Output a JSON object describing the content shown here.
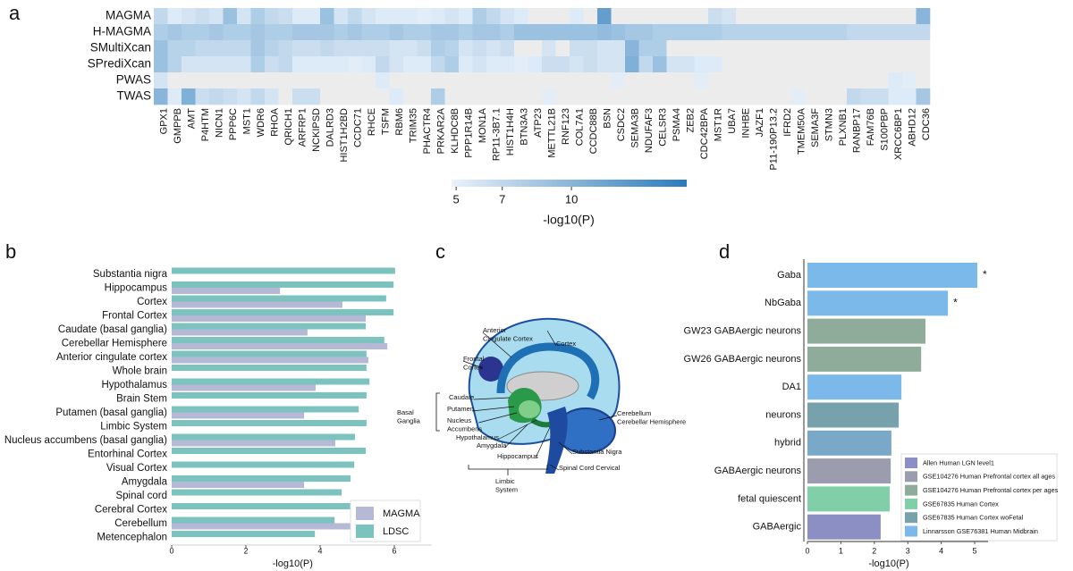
{
  "chart_data": [
    {
      "type": "heatmap",
      "panel": "a",
      "rows": [
        "MAGMA",
        "H-MAGMA",
        "SMultiXcan",
        "SPrediXcan",
        "PWAS",
        "TWAS"
      ],
      "columns": [
        "GPX1",
        "GMPPB",
        "AMT",
        "P4HTM",
        "NICN1",
        "PPP6C",
        "MST1",
        "WDR6",
        "RHOA",
        "QRICH1",
        "ARFRP1",
        "NCKIPSD",
        "DALRD3",
        "HIST1H2BD",
        "CCDC71",
        "RHCE",
        "TSFM",
        "RBM6",
        "TRIM35",
        "PHACTR4",
        "PRKAR2A",
        "KLHDC8B",
        "PPP1R14B",
        "MON1A",
        "RP11-3B7.1",
        "HIST1H4H",
        "BTN3A3",
        "ATP23",
        "METTL21B",
        "RNF123",
        "COL7A1",
        "CCDC88B",
        "BSN",
        "CSDC2",
        "SEMA3B",
        "NDUFAF3",
        "CELSR3",
        "PSMA4",
        "ZEB2",
        "CDC42BPA",
        "MST1R",
        "UBA7",
        "INHBE",
        "JAZF1",
        "P11-190P13.2",
        "IFRD2",
        "TMEM50A",
        "SEMA3F",
        "STMN3",
        "PLXNB1",
        "RANBP17",
        "FAM76B",
        "S100PBP",
        "XRCC6BP1",
        "ABHD12",
        "CDC36"
      ],
      "values": [
        [
          7,
          5.5,
          6,
          6.5,
          6,
          9,
          6,
          8,
          7,
          6.5,
          5.5,
          5.5,
          9,
          6,
          7,
          6,
          5.5,
          5.5,
          5.5,
          5.2,
          5.5,
          6,
          5.5,
          8,
          7,
          6,
          5.5,
          null,
          null,
          null,
          5.5,
          null,
          12,
          null,
          null,
          null,
          null,
          null,
          null,
          null,
          6.5,
          6,
          null,
          null,
          null,
          null,
          null,
          null,
          null,
          null,
          null,
          null,
          null,
          null,
          null,
          10
        ],
        [
          8,
          8.5,
          8,
          8,
          8.5,
          8,
          8,
          8.5,
          8,
          8,
          8.5,
          8.5,
          8.5,
          8,
          8.5,
          8,
          8,
          8.5,
          8,
          8,
          8.5,
          8.5,
          8,
          8.5,
          8.5,
          8,
          9,
          9,
          9,
          9,
          9,
          9,
          9.5,
          9,
          8.5,
          8.5,
          8,
          8,
          8,
          8,
          8,
          7.5,
          7.5,
          7.5,
          7.5,
          7.5,
          7.5,
          7.5,
          7.5,
          7.5,
          7,
          7,
          7,
          7,
          7,
          7
        ],
        [
          9,
          7.5,
          7.5,
          7,
          7,
          7,
          7,
          8.5,
          7.5,
          7,
          6.5,
          6.5,
          7,
          6.5,
          6.5,
          6.5,
          6.5,
          6,
          6,
          6.5,
          8,
          7.5,
          6,
          6.5,
          6,
          6.5,
          null,
          null,
          6,
          null,
          6.5,
          6.5,
          6,
          6,
          10,
          8,
          8,
          null,
          null,
          null,
          null,
          null,
          null,
          null,
          null,
          null,
          null,
          null,
          null,
          null,
          null,
          null,
          null,
          null,
          null,
          null
        ],
        [
          9,
          7.5,
          6,
          6,
          6,
          6,
          6,
          8,
          6.5,
          7,
          5.5,
          5.5,
          5.5,
          5.5,
          5.2,
          5.5,
          7,
          6,
          5.5,
          5.5,
          7,
          8,
          5.5,
          6,
          5.5,
          5.5,
          5.2,
          5.5,
          6.5,
          6.5,
          6,
          6.5,
          6,
          6,
          10.5,
          7,
          9,
          6,
          6,
          5.5,
          5.5,
          null,
          null,
          null,
          null,
          null,
          null,
          null,
          null,
          null,
          null,
          null,
          null,
          null,
          null,
          null
        ],
        [
          6,
          null,
          null,
          null,
          null,
          null,
          null,
          null,
          null,
          null,
          null,
          null,
          null,
          null,
          null,
          null,
          5.5,
          null,
          null,
          null,
          null,
          null,
          null,
          null,
          null,
          null,
          null,
          null,
          null,
          null,
          null,
          null,
          null,
          5.2,
          null,
          null,
          null,
          null,
          null,
          5.2,
          null,
          null,
          null,
          null,
          null,
          null,
          null,
          null,
          null,
          null,
          null,
          null,
          null,
          5.5,
          5.2,
          null
        ],
        [
          10,
          5.5,
          10.5,
          6.5,
          7,
          6.5,
          6,
          7,
          6,
          null,
          6.5,
          6.5,
          null,
          null,
          null,
          null,
          null,
          5.5,
          null,
          null,
          8,
          null,
          null,
          null,
          null,
          null,
          null,
          null,
          5.2,
          null,
          null,
          null,
          null,
          null,
          null,
          null,
          null,
          null,
          null,
          null,
          null,
          null,
          null,
          null,
          null,
          null,
          5.2,
          null,
          null,
          null,
          7,
          6.5,
          6.5,
          5.5,
          5.5,
          8.5
        ]
      ],
      "colorbar": {
        "label": "-log10(P)",
        "lim": [
          4.8,
          15
        ],
        "ticks": [
          5,
          7,
          10
        ]
      },
      "colors": [
        "#eaf2fb",
        "#2b7bba"
      ],
      "missing_color": "#ececec"
    },
    {
      "type": "bar",
      "panel": "b",
      "orientation": "horizontal",
      "categories": [
        "Substantia nigra",
        "Hippocampus",
        "Cortex",
        "Frontal Cortex",
        "Caudate (basal ganglia)",
        "Cerebellar Hemisphere",
        "Anterior cingulate cortex",
        "Whole brain",
        "Hypothalamus",
        "Brain Stem",
        "Putamen (basal ganglia)",
        "Limbic System",
        "Nucleus accumbens (basal ganglia)",
        "Entorhinal Cortex",
        "Visual Cortex",
        "Amygdala",
        "Spinal cord",
        "Cerebral Cortex",
        "Cerebellum",
        "Metencephalon"
      ],
      "series": [
        {
          "name": "MAGMA",
          "color": "#b5b9d5",
          "values": [
            null,
            2.92,
            4.6,
            5.23,
            3.66,
            5.81,
            5.3,
            null,
            3.88,
            null,
            3.57,
            null,
            4.41,
            null,
            null,
            3.57,
            null,
            null,
            5.18,
            null
          ]
        },
        {
          "name": "LDSC",
          "color": "#7cc2be",
          "values": [
            6.02,
            5.98,
            5.78,
            5.98,
            5.23,
            5.73,
            5.25,
            5.25,
            5.33,
            5.25,
            5.04,
            5.25,
            4.94,
            5.23,
            4.92,
            4.82,
            4.58,
            4.94,
            4.39,
            3.86
          ]
        }
      ],
      "xlabel": "-log10(P)",
      "xlim": [
        0,
        7
      ],
      "xticks": [
        0,
        2,
        4,
        6
      ],
      "legend": "lower right"
    },
    {
      "type": "bar",
      "panel": "d",
      "orientation": "horizontal",
      "categories": [
        "Gaba",
        "NbGaba",
        "GW23 GABAergic neurons",
        "GW26 GABAergic neurons",
        "DA1",
        "neurons",
        "hybrid",
        "GABAergic neurons",
        "fetal quiescent",
        "GABAergic"
      ],
      "values": [
        5.08,
        4.2,
        3.53,
        3.4,
        2.81,
        2.73,
        2.51,
        2.49,
        2.46,
        2.19
      ],
      "colors": [
        "#7ab9ea",
        "#7ab9ea",
        "#8fac9b",
        "#8fac9b",
        "#7ab9ea",
        "#78a2ab",
        "#7aa8c8",
        "#9b9cae",
        "#80cfa9",
        "#8c8fc4"
      ],
      "annotations": [
        "*",
        "*",
        null,
        null,
        null,
        null,
        null,
        null,
        null,
        null
      ],
      "xlabel": "-log10(P)",
      "xlim": [
        0,
        5.4
      ],
      "xticks": [
        0,
        1,
        2,
        3,
        4,
        5
      ],
      "legend": "lower right",
      "legend_entries": [
        {
          "name": "Allen Human LGN level1",
          "color": "#8c8fc4"
        },
        {
          "name": "GSE104276 Human Prefrontal cortex all ages",
          "color": "#9b9cae"
        },
        {
          "name": "GSE104276 Human Prefrontal cortex per ages",
          "color": "#8fac9b"
        },
        {
          "name": "GSE67835 Human Cortex",
          "color": "#80cfa9"
        },
        {
          "name": "GSE67835 Human Cortex woFetal",
          "color": "#78a2ab"
        },
        {
          "name": "Linnarsson GSE76381 Human Midbrain",
          "color": "#7ab9ea"
        }
      ]
    }
  ],
  "diagram": {
    "panel": "c",
    "labels": [
      [
        "Anterior",
        "Cingulate Cortex"
      ],
      [
        "Cortex"
      ],
      [
        "Frontal",
        "Cortex"
      ],
      [
        "Caudate"
      ],
      [
        "Putamen"
      ],
      [
        "Nucleus",
        "Accumbens"
      ],
      [
        "Basal",
        "Ganglia"
      ],
      [
        "Hypothalamus"
      ],
      [
        "Amygdala"
      ],
      [
        "Hippocampus"
      ],
      [
        "Limbic",
        "System"
      ],
      [
        "Cerebellum",
        "Cerebellar Hemisphere"
      ],
      [
        "Substantia Nigra"
      ],
      [
        "Spinal Cord Cervical"
      ]
    ]
  }
}
